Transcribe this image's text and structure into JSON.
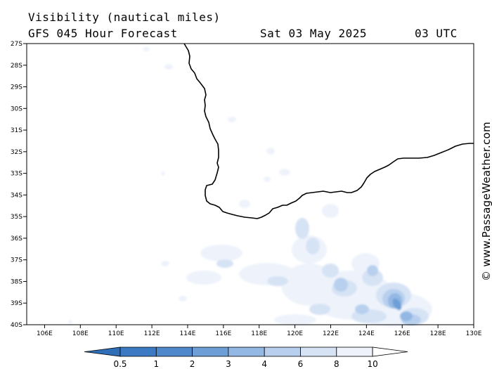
{
  "title": {
    "line1": "Visibility (nautical miles)",
    "line2": "GFS 045 Hour Forecast",
    "date": "Sat 03 May 2025",
    "time": "03 UTC"
  },
  "credit": "© www.PassageWeather.com",
  "map": {
    "lat_labels": [
      "27S",
      "28S",
      "29S",
      "30S",
      "31S",
      "32S",
      "33S",
      "34S",
      "35S",
      "36S",
      "37S",
      "38S",
      "39S",
      "40S"
    ],
    "lon_labels": [
      "106E",
      "108E",
      "110E",
      "112E",
      "114E",
      "116E",
      "118E",
      "120E",
      "122E",
      "124E",
      "126E",
      "128E",
      "130E"
    ],
    "lat_range": [
      -40,
      -27
    ],
    "lon_range": [
      105,
      130
    ],
    "coastline_color": "#000000",
    "fill_colors": [
      "#2f6fb8",
      "#4a86c8",
      "#6d9fd6",
      "#93b8e3",
      "#b8d0ee",
      "#d6e3f5",
      "#eef3fb",
      "#ffffff"
    ]
  },
  "colorbar": {
    "labels": [
      "0.5",
      "1",
      "2",
      "3",
      "4",
      "6",
      "8",
      "10"
    ],
    "colors": [
      "#3c7bc4",
      "#4f88cb",
      "#6d9fd6",
      "#93b8e3",
      "#b8d0ee",
      "#d6e3f5",
      "#eef3fb",
      "#ffffff"
    ]
  }
}
